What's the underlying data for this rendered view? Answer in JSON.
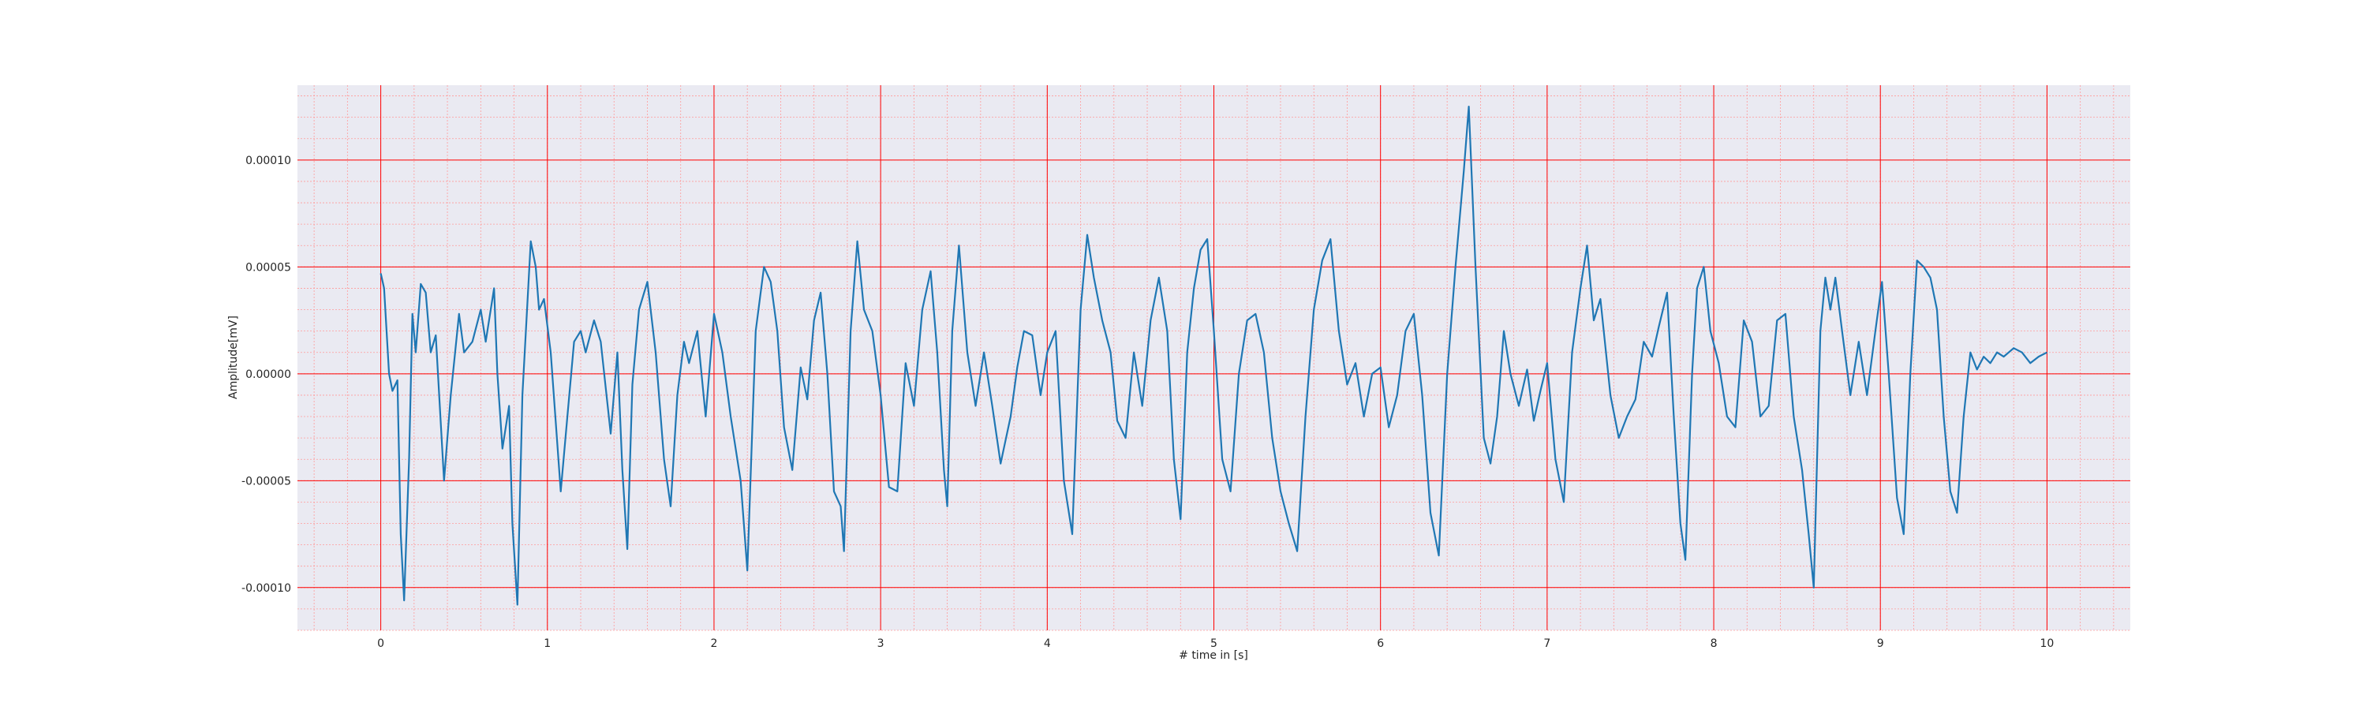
{
  "chart_data": {
    "type": "line",
    "xlabel": "# time in [s]",
    "ylabel": "Amplitude[mV]",
    "xlim": [
      -0.5,
      10.5
    ],
    "ylim": [
      -0.00012,
      0.000135
    ],
    "x_ticks": [
      0,
      1,
      2,
      3,
      4,
      5,
      6,
      7,
      8,
      9,
      10
    ],
    "x_tick_labels": [
      "0",
      "1",
      "2",
      "3",
      "4",
      "5",
      "6",
      "7",
      "8",
      "9",
      "10"
    ],
    "y_ticks": [
      0.0001,
      5e-05,
      0.0,
      -5e-05,
      -0.0001
    ],
    "y_tick_labels": [
      "0.00010",
      "0.00005",
      "0.00000",
      "-0.00005",
      "-0.00010"
    ],
    "grid": true,
    "minor_grid": true,
    "colors": {
      "line": "#1f77b4",
      "major_grid": "#ff0000",
      "minor_grid": "#ff9a9a",
      "plot_background": "#eaeaf2",
      "text": "#262626"
    },
    "series": [
      {
        "points": [
          [
            0.0,
            4.7e-05
          ],
          [
            0.02,
            4e-05
          ],
          [
            0.05,
            0.0
          ],
          [
            0.07,
            -8e-06
          ],
          [
            0.1,
            -3e-06
          ],
          [
            0.12,
            -7.5e-05
          ],
          [
            0.14,
            -0.000106
          ],
          [
            0.17,
            -4e-05
          ],
          [
            0.19,
            2.8e-05
          ],
          [
            0.21,
            1e-05
          ],
          [
            0.24,
            4.2e-05
          ],
          [
            0.27,
            3.8e-05
          ],
          [
            0.3,
            1e-05
          ],
          [
            0.33,
            1.8e-05
          ],
          [
            0.38,
            -5e-05
          ],
          [
            0.42,
            -1e-05
          ],
          [
            0.47,
            2.8e-05
          ],
          [
            0.5,
            1e-05
          ],
          [
            0.55,
            1.5e-05
          ],
          [
            0.6,
            3e-05
          ],
          [
            0.63,
            1.5e-05
          ],
          [
            0.68,
            4e-05
          ],
          [
            0.7,
            0.0
          ],
          [
            0.73,
            -3.5e-05
          ],
          [
            0.77,
            -1.5e-05
          ],
          [
            0.79,
            -7e-05
          ],
          [
            0.82,
            -0.000108
          ],
          [
            0.85,
            -1e-05
          ],
          [
            0.9,
            6.2e-05
          ],
          [
            0.93,
            5e-05
          ],
          [
            0.95,
            3e-05
          ],
          [
            0.98,
            3.5e-05
          ],
          [
            1.02,
            1e-05
          ],
          [
            1.08,
            -5.5e-05
          ],
          [
            1.12,
            -2e-05
          ],
          [
            1.16,
            1.5e-05
          ],
          [
            1.2,
            2e-05
          ],
          [
            1.23,
            1e-05
          ],
          [
            1.28,
            2.5e-05
          ],
          [
            1.32,
            1.5e-05
          ],
          [
            1.38,
            -2.8e-05
          ],
          [
            1.42,
            1e-05
          ],
          [
            1.45,
            -4.5e-05
          ],
          [
            1.48,
            -8.2e-05
          ],
          [
            1.51,
            -5e-06
          ],
          [
            1.55,
            3e-05
          ],
          [
            1.6,
            4.3e-05
          ],
          [
            1.65,
            1e-05
          ],
          [
            1.7,
            -4e-05
          ],
          [
            1.74,
            -6.2e-05
          ],
          [
            1.78,
            -1e-05
          ],
          [
            1.82,
            1.5e-05
          ],
          [
            1.85,
            5e-06
          ],
          [
            1.9,
            2e-05
          ],
          [
            1.95,
            -2e-05
          ],
          [
            2.0,
            2.8e-05
          ],
          [
            2.05,
            1e-05
          ],
          [
            2.1,
            -2e-05
          ],
          [
            2.16,
            -5e-05
          ],
          [
            2.2,
            -9.2e-05
          ],
          [
            2.25,
            2e-05
          ],
          [
            2.3,
            5e-05
          ],
          [
            2.34,
            4.3e-05
          ],
          [
            2.38,
            2e-05
          ],
          [
            2.42,
            -2.5e-05
          ],
          [
            2.47,
            -4.5e-05
          ],
          [
            2.52,
            3e-06
          ],
          [
            2.56,
            -1.2e-05
          ],
          [
            2.6,
            2.5e-05
          ],
          [
            2.64,
            3.8e-05
          ],
          [
            2.68,
            0.0
          ],
          [
            2.72,
            -5.5e-05
          ],
          [
            2.76,
            -6.2e-05
          ],
          [
            2.78,
            -8.3e-05
          ],
          [
            2.82,
            2e-05
          ],
          [
            2.86,
            6.2e-05
          ],
          [
            2.9,
            3e-05
          ],
          [
            2.95,
            2e-05
          ],
          [
            3.0,
            -1e-05
          ],
          [
            3.05,
            -5.3e-05
          ],
          [
            3.1,
            -5.5e-05
          ],
          [
            3.15,
            5e-06
          ],
          [
            3.2,
            -1.5e-05
          ],
          [
            3.25,
            3e-05
          ],
          [
            3.3,
            4.8e-05
          ],
          [
            3.34,
            1e-05
          ],
          [
            3.38,
            -4.5e-05
          ],
          [
            3.4,
            -6.2e-05
          ],
          [
            3.43,
            2e-05
          ],
          [
            3.47,
            6e-05
          ],
          [
            3.52,
            1e-05
          ],
          [
            3.57,
            -1.5e-05
          ],
          [
            3.62,
            1e-05
          ],
          [
            3.67,
            -1.5e-05
          ],
          [
            3.72,
            -4.2e-05
          ],
          [
            3.78,
            -2e-05
          ],
          [
            3.82,
            3e-06
          ],
          [
            3.86,
            2e-05
          ],
          [
            3.91,
            1.8e-05
          ],
          [
            3.96,
            -1e-05
          ],
          [
            4.0,
            1e-05
          ],
          [
            4.05,
            2e-05
          ],
          [
            4.1,
            -5e-05
          ],
          [
            4.15,
            -7.5e-05
          ],
          [
            4.2,
            3e-05
          ],
          [
            4.24,
            6.5e-05
          ],
          [
            4.28,
            4.5e-05
          ],
          [
            4.33,
            2.5e-05
          ],
          [
            4.38,
            1e-05
          ],
          [
            4.42,
            -2.2e-05
          ],
          [
            4.47,
            -3e-05
          ],
          [
            4.52,
            1e-05
          ],
          [
            4.57,
            -1.5e-05
          ],
          [
            4.62,
            2.5e-05
          ],
          [
            4.67,
            4.5e-05
          ],
          [
            4.72,
            2e-05
          ],
          [
            4.76,
            -4e-05
          ],
          [
            4.8,
            -6.8e-05
          ],
          [
            4.84,
            1e-05
          ],
          [
            4.88,
            4e-05
          ],
          [
            4.92,
            5.8e-05
          ],
          [
            4.96,
            6.3e-05
          ],
          [
            5.0,
            2e-05
          ],
          [
            5.05,
            -4e-05
          ],
          [
            5.1,
            -5.5e-05
          ],
          [
            5.15,
            0.0
          ],
          [
            5.2,
            2.5e-05
          ],
          [
            5.25,
            2.8e-05
          ],
          [
            5.3,
            1e-05
          ],
          [
            5.35,
            -3e-05
          ],
          [
            5.4,
            -5.5e-05
          ],
          [
            5.45,
            -7e-05
          ],
          [
            5.5,
            -8.3e-05
          ],
          [
            5.55,
            -2e-05
          ],
          [
            5.6,
            3e-05
          ],
          [
            5.65,
            5.3e-05
          ],
          [
            5.7,
            6.3e-05
          ],
          [
            5.75,
            2e-05
          ],
          [
            5.8,
            -5e-06
          ],
          [
            5.85,
            5e-06
          ],
          [
            5.9,
            -2e-05
          ],
          [
            5.95,
            0.0
          ],
          [
            6.0,
            3e-06
          ],
          [
            6.05,
            -2.5e-05
          ],
          [
            6.1,
            -1e-05
          ],
          [
            6.15,
            2e-05
          ],
          [
            6.2,
            2.8e-05
          ],
          [
            6.25,
            -1e-05
          ],
          [
            6.3,
            -6.5e-05
          ],
          [
            6.35,
            -8.5e-05
          ],
          [
            6.4,
            0.0
          ],
          [
            6.45,
            5e-05
          ],
          [
            6.5,
            9.5e-05
          ],
          [
            6.53,
            0.000125
          ],
          [
            6.57,
            5e-05
          ],
          [
            6.62,
            -3e-05
          ],
          [
            6.66,
            -4.2e-05
          ],
          [
            6.7,
            -2e-05
          ],
          [
            6.74,
            2e-05
          ],
          [
            6.78,
            0.0
          ],
          [
            6.83,
            -1.5e-05
          ],
          [
            6.88,
            2e-06
          ],
          [
            6.92,
            -2.2e-05
          ],
          [
            6.96,
            -8e-06
          ],
          [
            7.0,
            5e-06
          ],
          [
            7.05,
            -4e-05
          ],
          [
            7.1,
            -6e-05
          ],
          [
            7.15,
            1e-05
          ],
          [
            7.2,
            4e-05
          ],
          [
            7.24,
            6e-05
          ],
          [
            7.28,
            2.5e-05
          ],
          [
            7.32,
            3.5e-05
          ],
          [
            7.38,
            -1e-05
          ],
          [
            7.43,
            -3e-05
          ],
          [
            7.48,
            -2e-05
          ],
          [
            7.53,
            -1.2e-05
          ],
          [
            7.58,
            1.5e-05
          ],
          [
            7.63,
            8e-06
          ],
          [
            7.67,
            2.2e-05
          ],
          [
            7.72,
            3.8e-05
          ],
          [
            7.76,
            -2e-05
          ],
          [
            7.8,
            -7e-05
          ],
          [
            7.83,
            -8.7e-05
          ],
          [
            7.87,
            0.0
          ],
          [
            7.9,
            4e-05
          ],
          [
            7.94,
            5e-05
          ],
          [
            7.98,
            2e-05
          ],
          [
            8.03,
            5e-06
          ],
          [
            8.08,
            -2e-05
          ],
          [
            8.13,
            -2.5e-05
          ],
          [
            8.18,
            2.5e-05
          ],
          [
            8.23,
            1.5e-05
          ],
          [
            8.28,
            -2e-05
          ],
          [
            8.33,
            -1.5e-05
          ],
          [
            8.38,
            2.5e-05
          ],
          [
            8.43,
            2.8e-05
          ],
          [
            8.48,
            -2e-05
          ],
          [
            8.53,
            -4.5e-05
          ],
          [
            8.57,
            -7.5e-05
          ],
          [
            8.6,
            -0.0001
          ],
          [
            8.64,
            2e-05
          ],
          [
            8.67,
            4.5e-05
          ],
          [
            8.7,
            3e-05
          ],
          [
            8.73,
            4.5e-05
          ],
          [
            8.77,
            2e-05
          ],
          [
            8.82,
            -1e-05
          ],
          [
            8.87,
            1.5e-05
          ],
          [
            8.92,
            -1e-05
          ],
          [
            8.97,
            2e-05
          ],
          [
            9.01,
            4.3e-05
          ],
          [
            9.05,
            0.0
          ],
          [
            9.1,
            -5.8e-05
          ],
          [
            9.14,
            -7.5e-05
          ],
          [
            9.18,
            0.0
          ],
          [
            9.22,
            5.3e-05
          ],
          [
            9.26,
            5e-05
          ],
          [
            9.3,
            4.5e-05
          ],
          [
            9.34,
            3e-05
          ],
          [
            9.38,
            -2e-05
          ],
          [
            9.42,
            -5.5e-05
          ],
          [
            9.46,
            -6.5e-05
          ],
          [
            9.5,
            -2e-05
          ],
          [
            9.54,
            1e-05
          ],
          [
            9.58,
            2e-06
          ],
          [
            9.62,
            8e-06
          ],
          [
            9.66,
            5e-06
          ],
          [
            9.7,
            1e-05
          ],
          [
            9.74,
            8e-06
          ],
          [
            9.8,
            1.2e-05
          ],
          [
            9.85,
            1e-05
          ],
          [
            9.9,
            5e-06
          ],
          [
            9.95,
            8e-06
          ],
          [
            10.0,
            1e-05
          ]
        ]
      }
    ]
  }
}
